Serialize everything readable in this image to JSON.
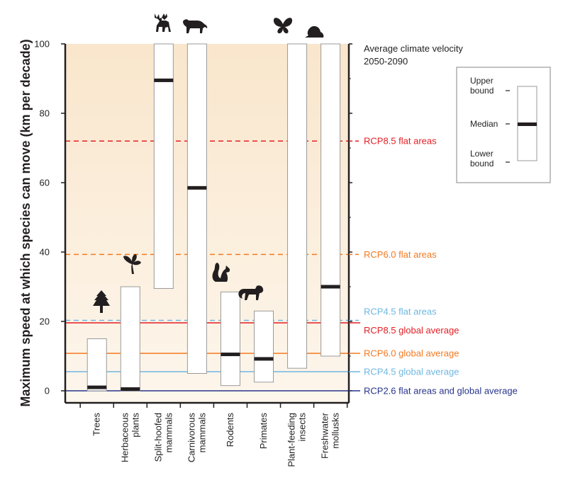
{
  "chart_data": {
    "type": "range",
    "ylabel": "Maximum speed at which species can move (km per decade)",
    "ylim": [
      0,
      100
    ],
    "yticks": [
      0,
      20,
      40,
      60,
      80,
      100
    ],
    "categories": [
      {
        "lines": [
          "Trees"
        ],
        "icon": "tree-icon",
        "lower": 0,
        "median": 1,
        "upper": 15
      },
      {
        "lines": [
          "Herbaceous",
          "plants"
        ],
        "icon": "plant-icon",
        "lower": 0,
        "median": 0.5,
        "upper": 30
      },
      {
        "lines": [
          "Split-hoofed",
          "mammals"
        ],
        "icon": "moose-icon",
        "lower": 29.5,
        "median": 89.5,
        "upper": 100
      },
      {
        "lines": [
          "Carnivorous",
          "mammals"
        ],
        "icon": "cat-icon",
        "lower": 5,
        "median": 58.5,
        "upper": 100
      },
      {
        "lines": [
          "Rodents"
        ],
        "icon": "squirrel-icon",
        "lower": 1.5,
        "median": 10.5,
        "upper": 28.5
      },
      {
        "lines": [
          "Primates"
        ],
        "icon": "monkey-icon",
        "lower": 2.5,
        "median": 9.2,
        "upper": 23
      },
      {
        "lines": [
          "Plant-feeding",
          "insects"
        ],
        "icon": "butterfly-icon",
        "lower": 6.5,
        "median": null,
        "upper": 100
      },
      {
        "lines": [
          "Freshwater",
          "mollusks"
        ],
        "icon": "snail-icon",
        "lower": 10,
        "median": 30,
        "upper": 100
      }
    ],
    "velocity_title": [
      "Average climate velocity",
      "2050-2090"
    ],
    "reference_lines": [
      {
        "label": "RCP8.5 flat areas",
        "value": 72,
        "color": "#e31e24",
        "dashed": true
      },
      {
        "label": "RCP6.0 flat areas",
        "value": 39.3,
        "color": "#f47920",
        "dashed": true
      },
      {
        "label": "RCP4.5 flat areas",
        "value": 20.3,
        "color": "#6fb7e0",
        "dashed": true
      },
      {
        "label": "RCP8.5 global average",
        "value": 19.6,
        "color": "#e31e24",
        "dashed": false
      },
      {
        "label": "RCP6.0 global average",
        "value": 10.8,
        "color": "#f47920",
        "dashed": false
      },
      {
        "label": "RCP4.5 global average",
        "value": 5.5,
        "color": "#6fb7e0",
        "dashed": false
      },
      {
        "label": "RCP2.6  flat areas and global average",
        "value": 0,
        "color": "#27348b",
        "dashed": false
      }
    ],
    "legend": {
      "upper": [
        "Upper",
        "bound"
      ],
      "median": "Median",
      "lower": [
        "Lower",
        "bound"
      ]
    },
    "colors": {
      "background": "#fcefdc",
      "bar_fill": "#ffffff",
      "bar_stroke": "#9a9a9a",
      "median": "#231f20",
      "axis": "#231f20"
    }
  }
}
